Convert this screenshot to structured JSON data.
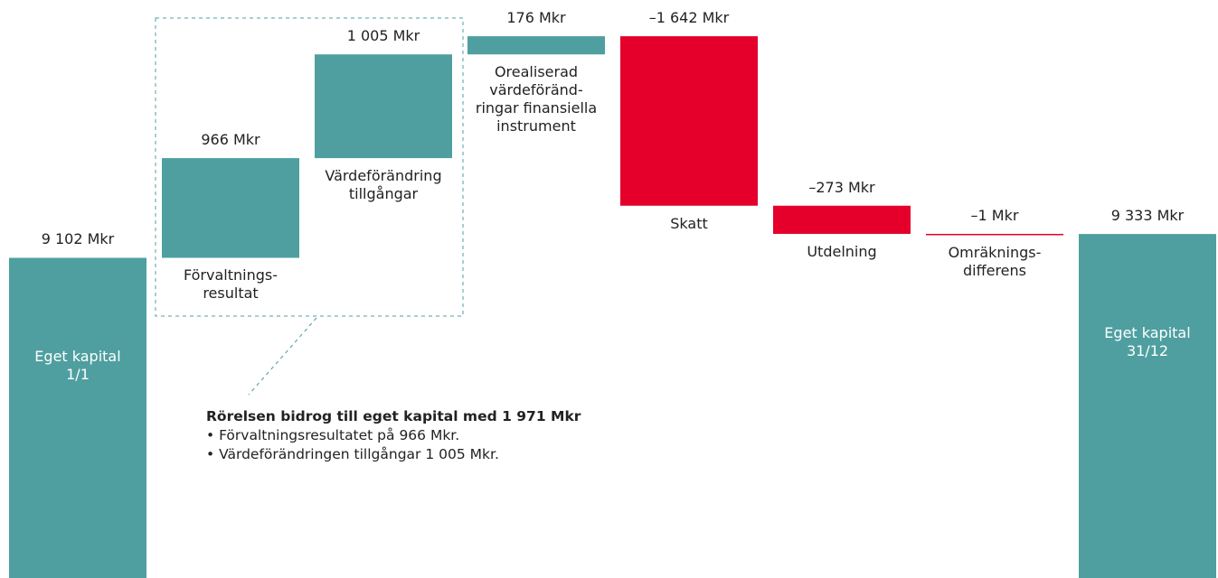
{
  "chart_data": {
    "type": "waterfall",
    "categories": [
      "Eget kapital\n1/1",
      "Förvaltnings-\nresultat",
      "Värdeförändring\ntillgångar",
      "Orealiserad\nvärdeföränd-\nringar finansiella\ninstrument",
      "Skatt",
      "Utdelning",
      "Omräknings-\ndifferens",
      "Eget kapital\n31/12"
    ],
    "values": [
      9102,
      966,
      1005,
      176,
      -1642,
      -273,
      -1,
      9333
    ],
    "value_labels": [
      "9 102 Mkr",
      "966 Mkr",
      "1 005 Mkr",
      "176 Mkr",
      "–1 642 Mkr",
      "–273 Mkr",
      "–1 Mkr",
      "9 333 Mkr"
    ],
    "measure": [
      "absolute",
      "relative",
      "relative",
      "relative",
      "relative",
      "relative",
      "relative",
      "absolute"
    ],
    "colors": {
      "positive": "#4f9fa0",
      "negative": "#e4002b",
      "total": "#4f9fa0"
    },
    "ylim": [
      6000,
      11600
    ],
    "annotation": {
      "title": "Rörelsen bidrog till eget kapital med 1 971 Mkr",
      "lines": [
        "• Förvaltningsresultatet på 966 Mkr.",
        "• Värdeförändringen tillgångar 1 005 Mkr."
      ]
    }
  }
}
